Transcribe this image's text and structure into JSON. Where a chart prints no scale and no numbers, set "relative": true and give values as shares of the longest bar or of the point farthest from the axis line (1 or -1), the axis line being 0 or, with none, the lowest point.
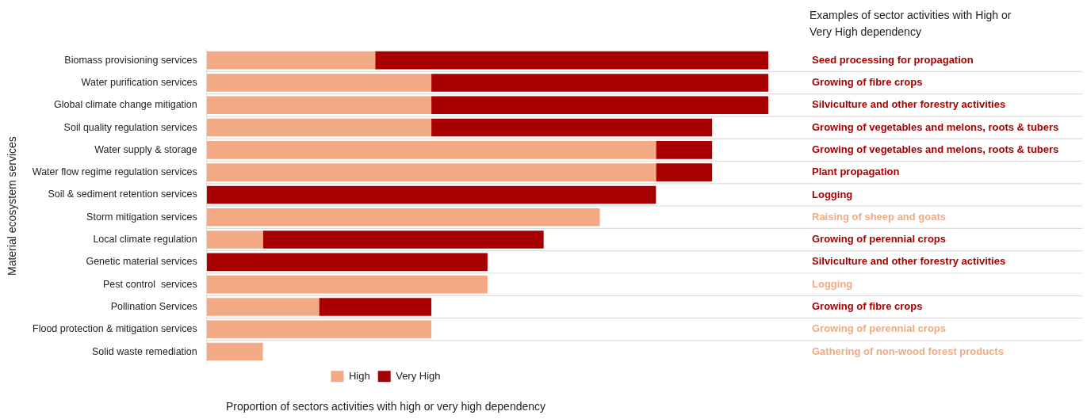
{
  "chart_data": {
    "type": "bar",
    "orientation": "horizontal",
    "stacked": true,
    "relative": true,
    "xlabel": "Proportion of sectors activities with high or very high dependency",
    "ylabel": "Material ecosystem services",
    "categories": [
      "Biomass provisioning services",
      "Water purification services",
      "Global climate change mitigation",
      "Soil quality regulation services",
      "Water supply & storage",
      "Water flow regime regulation services",
      "Soil & sediment retention services",
      "Storm mitigation services",
      "Local climate regulation",
      "Genetic material services",
      "Pest control  services",
      "Pollination Services",
      "Flood protection & mitigation services",
      "Solid waste remediation"
    ],
    "series": [
      {
        "name": "High",
        "color": "#f2aa84",
        "values": [
          0.3,
          0.4,
          0.4,
          0.4,
          0.8,
          0.8,
          0,
          0.7,
          0.1,
          0,
          0.5,
          0.2,
          0.4,
          0.1
        ]
      },
      {
        "name": "Very High",
        "color": "#a80000",
        "values": [
          0.7,
          0.6,
          0.6,
          0.5,
          0.1,
          0.1,
          0.8,
          0,
          0.5,
          0.5,
          0,
          0.2,
          0,
          0
        ]
      }
    ],
    "legend": "bottom",
    "grid": "y",
    "annotations": [
      "Examples of sector activities with High or Very High dependency",
      "Seed processing for propagation",
      "Growing of fibre crops",
      "Silviculture and other forestry activities",
      "Growing of vegetables and melons, roots & tubers",
      "Growing of vegetables and melons, roots & tubers",
      "Plant propagation",
      "Logging",
      "Raising of sheep and goats",
      "Growing of perennial crops",
      "Silviculture and other forestry activities",
      "Logging",
      "Growing of fibre crops",
      "Growing of perennial crops",
      "Gathering of non-wood forest products"
    ]
  }
}
